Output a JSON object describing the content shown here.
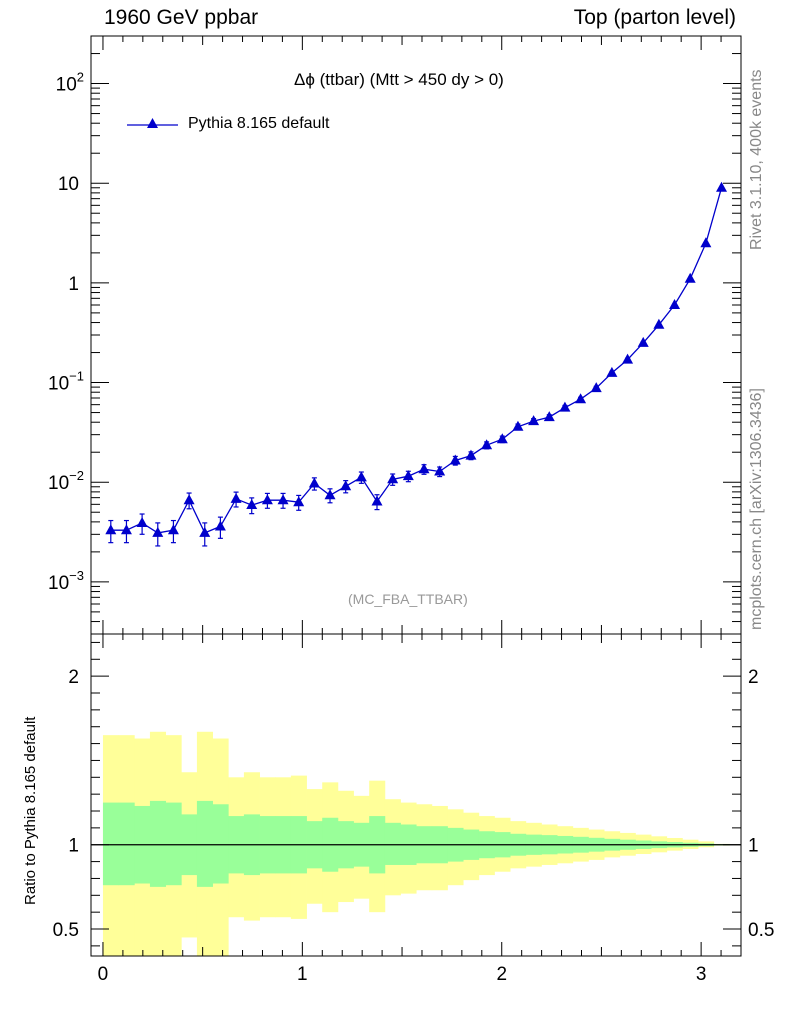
{
  "header": {
    "left": "1960 GeV ppbar",
    "right": "Top (parton level)"
  },
  "side_labels": {
    "top": "Rivet 3.1.10,  400k events",
    "bottom": "mcplots.cern.ch [arXiv:1306.3436]"
  },
  "plot_title": "Δϕ (ttbar) (Mtt > 450 dy > 0)",
  "analysis_id": "(MC_FBA_TTBAR)",
  "ratio_ylabel": "Ratio to Pythia 8.165 default",
  "chart_data": [
    {
      "type": "line",
      "panel": "main",
      "title": "Δϕ (ttbar) (Mtt > 450 dy > 0)",
      "yscale": "log",
      "xlim": [
        -0.06,
        3.2
      ],
      "ylim": [
        0.0003,
        300
      ],
      "x_ticks": [
        0,
        1,
        2,
        3
      ],
      "y_tick_labels": [
        "10^-3",
        "10^-2",
        "10^-1",
        "1",
        "10",
        "10^2"
      ],
      "series": [
        {
          "name": "Pythia 8.165 default",
          "color": "#0000cc",
          "marker": "triangle",
          "x": [
            0.0393,
            0.1178,
            0.1963,
            0.2749,
            0.3534,
            0.432,
            0.5105,
            0.589,
            0.6676,
            0.7461,
            0.8247,
            0.9032,
            0.9817,
            1.0603,
            1.1388,
            1.2174,
            1.2959,
            1.3744,
            1.453,
            1.5315,
            1.6101,
            1.6886,
            1.7671,
            1.8457,
            1.9242,
            2.0028,
            2.0813,
            2.1598,
            2.2384,
            2.3169,
            2.3955,
            2.474,
            2.5525,
            2.6311,
            2.7096,
            2.7882,
            2.8667,
            2.9452,
            3.0238,
            3.1023
          ],
          "y": [
            0.0033,
            0.0033,
            0.0039,
            0.0031,
            0.0033,
            0.0066,
            0.0031,
            0.0036,
            0.0068,
            0.0059,
            0.0066,
            0.0066,
            0.0063,
            0.0097,
            0.0074,
            0.0091,
            0.0112,
            0.0064,
            0.0107,
            0.0115,
            0.0135,
            0.0128,
            0.0165,
            0.0185,
            0.0235,
            0.027,
            0.036,
            0.041,
            0.045,
            0.056,
            0.068,
            0.088,
            0.125,
            0.17,
            0.25,
            0.38,
            0.6,
            1.1,
            2.5,
            9.0
          ],
          "yerr_rel": [
            0.25,
            0.25,
            0.23,
            0.26,
            0.25,
            0.18,
            0.26,
            0.24,
            0.17,
            0.18,
            0.17,
            0.17,
            0.17,
            0.14,
            0.16,
            0.14,
            0.13,
            0.17,
            0.13,
            0.12,
            0.11,
            0.11,
            0.1,
            0.09,
            0.08,
            0.075,
            0.065,
            0.06,
            0.057,
            0.052,
            0.047,
            0.041,
            0.035,
            0.03,
            0.025,
            0.02,
            0.016,
            0.012,
            0.008,
            0.004
          ]
        }
      ]
    },
    {
      "type": "area",
      "panel": "ratio",
      "ylabel": "Ratio to Pythia 8.165 default",
      "xlim": [
        -0.06,
        3.2
      ],
      "ylim": [
        0.34,
        2.25
      ],
      "x_ticks": [
        0,
        1,
        2,
        3
      ],
      "y_ticks": [
        0.5,
        1,
        2
      ],
      "bin_edges": [
        0.0,
        0.0785,
        0.1571,
        0.2356,
        0.3142,
        0.3927,
        0.4712,
        0.5498,
        0.6283,
        0.7069,
        0.7854,
        0.8639,
        0.9425,
        1.021,
        1.0996,
        1.1781,
        1.2566,
        1.3352,
        1.4137,
        1.4923,
        1.5708,
        1.6493,
        1.7279,
        1.8064,
        1.885,
        1.9635,
        2.042,
        2.1206,
        2.1991,
        2.2777,
        2.3562,
        2.4347,
        2.5133,
        2.5918,
        2.6704,
        2.7489,
        2.8274,
        2.906,
        2.9845,
        3.0631,
        3.1416
      ],
      "bands": [
        {
          "name": "2 sigma",
          "color": "#ffff99",
          "lower": [
            0.34,
            0.34,
            0.32,
            0.3,
            0.31,
            0.45,
            0.31,
            0.34,
            0.57,
            0.55,
            0.57,
            0.57,
            0.56,
            0.65,
            0.6,
            0.66,
            0.68,
            0.6,
            0.7,
            0.71,
            0.73,
            0.73,
            0.76,
            0.79,
            0.82,
            0.84,
            0.86,
            0.87,
            0.88,
            0.89,
            0.9,
            0.91,
            0.925,
            0.935,
            0.945,
            0.955,
            0.965,
            0.975,
            0.985,
            0.995
          ],
          "upper": [
            1.65,
            1.65,
            1.63,
            1.67,
            1.65,
            1.43,
            1.67,
            1.63,
            1.4,
            1.43,
            1.4,
            1.4,
            1.41,
            1.33,
            1.37,
            1.32,
            1.29,
            1.38,
            1.27,
            1.25,
            1.24,
            1.23,
            1.21,
            1.19,
            1.17,
            1.16,
            1.14,
            1.13,
            1.12,
            1.11,
            1.1,
            1.09,
            1.08,
            1.07,
            1.06,
            1.05,
            1.04,
            1.03,
            1.02,
            1.005
          ]
        },
        {
          "name": "1 sigma",
          "color": "#99ff99",
          "lower": [
            0.76,
            0.76,
            0.77,
            0.75,
            0.76,
            0.82,
            0.75,
            0.77,
            0.83,
            0.82,
            0.83,
            0.83,
            0.83,
            0.86,
            0.84,
            0.86,
            0.87,
            0.83,
            0.88,
            0.88,
            0.89,
            0.89,
            0.9,
            0.91,
            0.92,
            0.925,
            0.935,
            0.94,
            0.943,
            0.948,
            0.953,
            0.959,
            0.965,
            0.97,
            0.975,
            0.98,
            0.984,
            0.988,
            0.992,
            0.996
          ],
          "upper": [
            1.25,
            1.25,
            1.23,
            1.26,
            1.25,
            1.18,
            1.26,
            1.24,
            1.17,
            1.18,
            1.17,
            1.17,
            1.17,
            1.14,
            1.16,
            1.14,
            1.13,
            1.17,
            1.13,
            1.12,
            1.11,
            1.11,
            1.1,
            1.09,
            1.08,
            1.075,
            1.065,
            1.06,
            1.057,
            1.052,
            1.047,
            1.041,
            1.035,
            1.03,
            1.025,
            1.02,
            1.016,
            1.012,
            1.008,
            1.004
          ]
        }
      ],
      "reference_line": 1
    }
  ]
}
